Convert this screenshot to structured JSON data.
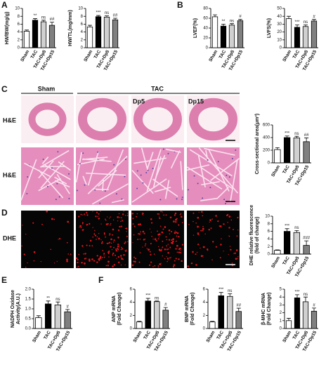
{
  "panel_letters": [
    "A",
    "B",
    "C",
    "D",
    "E",
    "F"
  ],
  "image_labels": {
    "columns": [
      "Sham",
      "TAC",
      "Dp5",
      "Dp15"
    ],
    "rows": [
      "H&E",
      "H&E",
      "DHE"
    ]
  },
  "chart_data": [
    {
      "type": "bar",
      "ylabel": [
        "HW/BW(mg/g)"
      ],
      "categories": [
        "Sham",
        "TAC",
        "TAC+Dp5",
        "TAC+Dp15"
      ],
      "values": [
        4.2,
        7.0,
        6.6,
        5.7
      ],
      "errors": [
        0.3,
        0.4,
        0.4,
        0.8
      ],
      "colors": [
        "#ffffff",
        "#000000",
        "#d0d0d0",
        "#808080"
      ],
      "annotations": [
        "**",
        "ns",
        "##"
      ],
      "ylim": [
        0,
        10
      ],
      "yticks": [
        0,
        2,
        4,
        6,
        8,
        10
      ]
    },
    {
      "type": "bar",
      "ylabel": [
        "HW/TL(mg/mm)"
      ],
      "categories": [
        "Sham",
        "TAC",
        "TAC+Dp5",
        "TAC+Dp15"
      ],
      "values": [
        5.3,
        7.9,
        7.8,
        7.1
      ],
      "errors": [
        0.4,
        0.3,
        0.3,
        0.4
      ],
      "colors": [
        "#ffffff",
        "#000000",
        "#d0d0d0",
        "#808080"
      ],
      "annotations": [
        "***",
        "ns",
        "##"
      ],
      "ylim": [
        0,
        10
      ],
      "yticks": [
        0,
        2,
        4,
        6,
        8,
        10
      ]
    },
    {
      "type": "bar",
      "ylabel": [
        "LVEF(%)"
      ],
      "categories": [
        "Sham",
        "TAC",
        "TAC+Dp5",
        "TAC+Dp15"
      ],
      "values": [
        63,
        44,
        46,
        55
      ],
      "errors": [
        4,
        4,
        3,
        3
      ],
      "colors": [
        "#ffffff",
        "#000000",
        "#d0d0d0",
        "#808080"
      ],
      "annotations": [
        "**",
        "ns",
        "#"
      ],
      "ylim": [
        0,
        80
      ],
      "yticks": [
        0,
        20,
        40,
        60,
        80
      ]
    },
    {
      "type": "bar",
      "ylabel": [
        "LVFS(%)"
      ],
      "categories": [
        "Sham",
        "TAC",
        "TAC+Dp5",
        "TAC+Dp15"
      ],
      "values": [
        37,
        26,
        27,
        34
      ],
      "errors": [
        3,
        3,
        2,
        2
      ],
      "colors": [
        "#ffffff",
        "#000000",
        "#d0d0d0",
        "#808080"
      ],
      "annotations": [
        "***",
        "ns",
        "#"
      ],
      "ylim": [
        0,
        50
      ],
      "yticks": [
        0,
        10,
        20,
        30,
        40,
        50
      ]
    },
    {
      "type": "bar",
      "ylabel": [
        "Cross-sectional  area(μm²)"
      ],
      "categories": [
        "Sham",
        "TAC",
        "TAC+Dp5",
        "TAC+Dp15"
      ],
      "values": [
        210,
        400,
        395,
        335
      ],
      "errors": [
        30,
        25,
        25,
        60
      ],
      "colors": [
        "#ffffff",
        "#000000",
        "#d0d0d0",
        "#808080"
      ],
      "annotations": [
        "***",
        "ns",
        "##"
      ],
      "ylim": [
        0,
        600
      ],
      "yticks": [
        0,
        200,
        400,
        600
      ]
    },
    {
      "type": "bar",
      "ylabel": [
        "DHE relative fluorescence",
        "(fold of change)"
      ],
      "categories": [
        "Sham",
        "TAC",
        "TAC+Dp5",
        "TAC+Dp15"
      ],
      "values": [
        1.0,
        6.0,
        5.7,
        2.3
      ],
      "errors": [
        0.1,
        0.7,
        0.5,
        1.2
      ],
      "colors": [
        "#ffffff",
        "#000000",
        "#d0d0d0",
        "#808080"
      ],
      "annotations": [
        "***",
        "ns",
        "###"
      ],
      "ylim": [
        0,
        10
      ],
      "yticks": [
        0,
        2,
        4,
        6,
        8,
        10
      ]
    },
    {
      "type": "bar",
      "ylabel": [
        "NADPH Oxidase",
        "Activity(A.U.)"
      ],
      "categories": [
        "Sham",
        "TAC",
        "TAC+Dp5",
        "TAC+Dp15"
      ],
      "values": [
        0.55,
        1.25,
        1.2,
        0.85
      ],
      "errors": [
        0.1,
        0.15,
        0.15,
        0.12
      ],
      "colors": [
        "#ffffff",
        "#000000",
        "#d0d0d0",
        "#808080"
      ],
      "annotations": [
        "**",
        "ns",
        "#"
      ],
      "ylim": [
        0,
        2
      ],
      "yticks": [
        {
          "value": 0,
          "label": "0.0"
        },
        {
          "value": 0.5,
          "label": "0.5"
        },
        {
          "value": 1,
          "label": "1.0"
        },
        {
          "value": 1.5,
          "label": "1.5"
        },
        {
          "value": 2,
          "label": "2.0"
        }
      ]
    },
    {
      "type": "bar",
      "ylabel": [
        "ANP mRNA",
        "(Fold Change)"
      ],
      "categories": [
        "Sham",
        "TAC",
        "TAC+Dp5",
        "TAC+Dp15"
      ],
      "values": [
        1.0,
        4.2,
        4.1,
        2.8
      ],
      "errors": [
        0.1,
        0.4,
        0.1,
        0.4
      ],
      "colors": [
        "#ffffff",
        "#000000",
        "#d0d0d0",
        "#808080"
      ],
      "annotations": [
        "***",
        "ns",
        "#"
      ],
      "ylim": [
        0,
        6
      ],
      "yticks": [
        0,
        2,
        4,
        6
      ]
    },
    {
      "type": "bar",
      "ylabel": [
        "BNP mRNA",
        "(Fold Change)"
      ],
      "categories": [
        "Sham",
        "TAC",
        "TAC+Dp5",
        "TAC+Dp15"
      ],
      "values": [
        1.0,
        5.0,
        4.9,
        2.6
      ],
      "errors": [
        0.1,
        0.5,
        0.4,
        0.5
      ],
      "colors": [
        "#ffffff",
        "#000000",
        "#d0d0d0",
        "#808080"
      ],
      "annotations": [
        "***",
        "ns",
        "##"
      ],
      "ylim": [
        0,
        6
      ],
      "yticks": [
        0,
        2,
        4,
        6
      ]
    },
    {
      "type": "bar",
      "ylabel": [
        "β-MHC mRNA",
        "(Fold Change)"
      ],
      "categories": [
        "Sham",
        "TAC",
        "TAC+Dp5",
        "TAC+Dp15"
      ],
      "values": [
        1.0,
        3.9,
        3.4,
        2.2
      ],
      "errors": [
        0.3,
        0.4,
        0.6,
        0.4
      ],
      "colors": [
        "#ffffff",
        "#000000",
        "#d0d0d0",
        "#808080"
      ],
      "annotations": [
        "***",
        "ns",
        "#"
      ],
      "ylim": [
        0,
        5
      ],
      "yticks": [
        0,
        1,
        2,
        3,
        4,
        5
      ]
    }
  ]
}
